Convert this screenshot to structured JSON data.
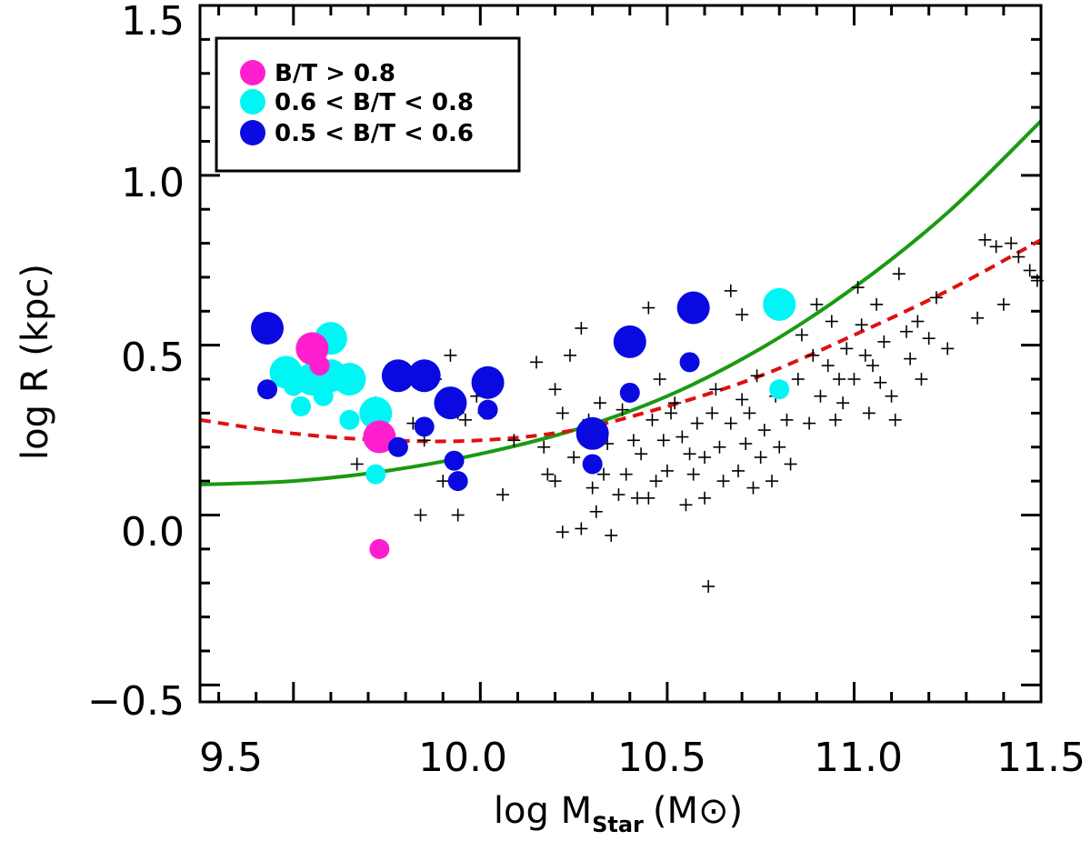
{
  "chart_data": {
    "type": "scatter",
    "xlabel": {
      "main": "log M",
      "sub": "Star",
      "unit": "(M⊙)"
    },
    "ylabel": "log R (kpc)",
    "xlim": [
      9.25,
      11.5
    ],
    "ylim": [
      -0.55,
      1.5
    ],
    "xticks": [
      "9.5",
      "10.0",
      "10.5",
      "11.0",
      "11.5"
    ],
    "yticks": [
      "−0.5",
      "0.0",
      "0.5",
      "1.0",
      "1.5"
    ],
    "grid": false,
    "legend": {
      "position": "top-left"
    },
    "colors": {
      "magenta": "#ff1fcf",
      "cyan": "#00f5f5",
      "blue": "#0a0ae0",
      "green": "#1a9a12",
      "red": "#e01010"
    },
    "series": [
      {
        "name": "B/T > 0.8",
        "color": "#ff1fcf",
        "points": [
          {
            "x": 9.55,
            "y": 0.49,
            "s": "L"
          },
          {
            "x": 9.57,
            "y": 0.44,
            "s": "S"
          },
          {
            "x": 9.73,
            "y": 0.23,
            "s": "L"
          },
          {
            "x": 9.73,
            "y": -0.1,
            "s": "S"
          }
        ]
      },
      {
        "name": "0.6 < B/T < 0.8",
        "color": "#00f5f5",
        "points": [
          {
            "x": 9.48,
            "y": 0.42,
            "s": "L"
          },
          {
            "x": 9.5,
            "y": 0.38,
            "s": "S"
          },
          {
            "x": 9.52,
            "y": 0.32,
            "s": "S"
          },
          {
            "x": 9.55,
            "y": 0.4,
            "s": "L"
          },
          {
            "x": 9.58,
            "y": 0.35,
            "s": "S"
          },
          {
            "x": 9.6,
            "y": 0.52,
            "s": "L"
          },
          {
            "x": 9.6,
            "y": 0.41,
            "s": "L"
          },
          {
            "x": 9.65,
            "y": 0.4,
            "s": "L"
          },
          {
            "x": 9.65,
            "y": 0.28,
            "s": "S"
          },
          {
            "x": 9.72,
            "y": 0.3,
            "s": "L"
          },
          {
            "x": 9.72,
            "y": 0.12,
            "s": "S"
          },
          {
            "x": 10.8,
            "y": 0.62,
            "s": "L"
          },
          {
            "x": 10.8,
            "y": 0.37,
            "s": "S"
          }
        ]
      },
      {
        "name": "0.5 < B/T < 0.6",
        "color": "#0a0ae0",
        "points": [
          {
            "x": 9.43,
            "y": 0.55,
            "s": "L"
          },
          {
            "x": 9.43,
            "y": 0.37,
            "s": "S"
          },
          {
            "x": 9.78,
            "y": 0.41,
            "s": "L"
          },
          {
            "x": 9.78,
            "y": 0.2,
            "s": "S"
          },
          {
            "x": 9.85,
            "y": 0.41,
            "s": "L"
          },
          {
            "x": 9.85,
            "y": 0.26,
            "s": "S"
          },
          {
            "x": 9.92,
            "y": 0.33,
            "s": "L"
          },
          {
            "x": 9.93,
            "y": 0.16,
            "s": "S"
          },
          {
            "x": 9.94,
            "y": 0.1,
            "s": "S"
          },
          {
            "x": 10.02,
            "y": 0.39,
            "s": "L"
          },
          {
            "x": 10.02,
            "y": 0.31,
            "s": "S"
          },
          {
            "x": 10.3,
            "y": 0.24,
            "s": "L"
          },
          {
            "x": 10.3,
            "y": 0.15,
            "s": "S"
          },
          {
            "x": 10.4,
            "y": 0.51,
            "s": "L"
          },
          {
            "x": 10.4,
            "y": 0.36,
            "s": "S"
          },
          {
            "x": 10.57,
            "y": 0.61,
            "s": "L"
          },
          {
            "x": 10.56,
            "y": 0.45,
            "s": "S"
          }
        ]
      },
      {
        "name": "",
        "marker": "plus",
        "color": "#000000",
        "points": [
          {
            "x": 9.57,
            "y": 0.51
          },
          {
            "x": 9.7,
            "y": 0.3
          },
          {
            "x": 9.72,
            "y": 0.33
          },
          {
            "x": 9.67,
            "y": 0.15
          },
          {
            "x": 9.75,
            "y": 0.23
          },
          {
            "x": 9.78,
            "y": 0.4
          },
          {
            "x": 9.82,
            "y": 0.27
          },
          {
            "x": 9.85,
            "y": 0.22
          },
          {
            "x": 9.88,
            "y": 0.4
          },
          {
            "x": 9.9,
            "y": 0.1
          },
          {
            "x": 9.92,
            "y": 0.47
          },
          {
            "x": 9.94,
            "y": 0.3
          },
          {
            "x": 9.96,
            "y": 0.28
          },
          {
            "x": 9.99,
            "y": 0.35
          },
          {
            "x": 10.01,
            "y": 0.3
          },
          {
            "x": 10.03,
            "y": 0.4
          },
          {
            "x": 10.06,
            "y": 0.06
          },
          {
            "x": 10.09,
            "y": 0.22
          },
          {
            "x": 9.94,
            "y": 0.0
          },
          {
            "x": 9.84,
            "y": 0.0
          },
          {
            "x": 10.15,
            "y": 0.45
          },
          {
            "x": 10.17,
            "y": 0.2
          },
          {
            "x": 10.18,
            "y": 0.12
          },
          {
            "x": 10.2,
            "y": 0.37
          },
          {
            "x": 10.2,
            "y": 0.1
          },
          {
            "x": 10.22,
            "y": 0.3
          },
          {
            "x": 10.22,
            "y": -0.05
          },
          {
            "x": 10.24,
            "y": 0.47
          },
          {
            "x": 10.25,
            "y": 0.17
          },
          {
            "x": 10.27,
            "y": 0.55
          },
          {
            "x": 10.27,
            "y": -0.04
          },
          {
            "x": 10.29,
            "y": 0.28
          },
          {
            "x": 10.3,
            "y": 0.08
          },
          {
            "x": 10.31,
            "y": 0.01
          },
          {
            "x": 10.32,
            "y": 0.33
          },
          {
            "x": 10.33,
            "y": 0.12
          },
          {
            "x": 10.34,
            "y": 0.21
          },
          {
            "x": 10.35,
            "y": -0.06
          },
          {
            "x": 10.37,
            "y": 0.06
          },
          {
            "x": 10.38,
            "y": 0.31
          },
          {
            "x": 10.39,
            "y": 0.12
          },
          {
            "x": 10.41,
            "y": 0.22
          },
          {
            "x": 10.42,
            "y": 0.05
          },
          {
            "x": 10.43,
            "y": 0.18
          },
          {
            "x": 10.45,
            "y": 0.61
          },
          {
            "x": 10.45,
            "y": 0.05
          },
          {
            "x": 10.46,
            "y": 0.28
          },
          {
            "x": 10.47,
            "y": 0.1
          },
          {
            "x": 10.48,
            "y": 0.4
          },
          {
            "x": 10.49,
            "y": 0.22
          },
          {
            "x": 10.5,
            "y": 0.13
          },
          {
            "x": 10.51,
            "y": 0.3
          },
          {
            "x": 10.52,
            "y": 0.33
          },
          {
            "x": 10.54,
            "y": 0.23
          },
          {
            "x": 10.55,
            "y": 0.03
          },
          {
            "x": 10.56,
            "y": 0.18
          },
          {
            "x": 10.57,
            "y": 0.12
          },
          {
            "x": 10.58,
            "y": 0.27
          },
          {
            "x": 10.6,
            "y": 0.17
          },
          {
            "x": 10.6,
            "y": 0.05
          },
          {
            "x": 10.61,
            "y": -0.21
          },
          {
            "x": 10.62,
            "y": 0.3
          },
          {
            "x": 10.63,
            "y": 0.37
          },
          {
            "x": 10.64,
            "y": 0.2
          },
          {
            "x": 10.65,
            "y": 0.1
          },
          {
            "x": 10.67,
            "y": 0.66
          },
          {
            "x": 10.67,
            "y": 0.27
          },
          {
            "x": 10.69,
            "y": 0.13
          },
          {
            "x": 10.7,
            "y": 0.34
          },
          {
            "x": 10.7,
            "y": 0.59
          },
          {
            "x": 10.71,
            "y": 0.21
          },
          {
            "x": 10.72,
            "y": 0.3
          },
          {
            "x": 10.73,
            "y": 0.08
          },
          {
            "x": 10.74,
            "y": 0.41
          },
          {
            "x": 10.75,
            "y": 0.17
          },
          {
            "x": 10.76,
            "y": 0.25
          },
          {
            "x": 10.78,
            "y": 0.1
          },
          {
            "x": 10.79,
            "y": 0.35
          },
          {
            "x": 10.8,
            "y": 0.2
          },
          {
            "x": 10.82,
            "y": 0.28
          },
          {
            "x": 10.83,
            "y": 0.15
          },
          {
            "x": 10.85,
            "y": 0.4
          },
          {
            "x": 10.86,
            "y": 0.53
          },
          {
            "x": 10.88,
            "y": 0.27
          },
          {
            "x": 10.89,
            "y": 0.47
          },
          {
            "x": 10.9,
            "y": 0.62
          },
          {
            "x": 10.91,
            "y": 0.35
          },
          {
            "x": 10.93,
            "y": 0.44
          },
          {
            "x": 10.94,
            "y": 0.57
          },
          {
            "x": 10.95,
            "y": 0.28
          },
          {
            "x": 10.96,
            "y": 0.4
          },
          {
            "x": 10.98,
            "y": 0.49
          },
          {
            "x": 11.0,
            "y": 0.4
          },
          {
            "x": 11.01,
            "y": 0.67
          },
          {
            "x": 11.02,
            "y": 0.56
          },
          {
            "x": 11.03,
            "y": 0.47
          },
          {
            "x": 11.04,
            "y": 0.3
          },
          {
            "x": 11.05,
            "y": 0.44
          },
          {
            "x": 11.07,
            "y": 0.39
          },
          {
            "x": 11.08,
            "y": 0.51
          },
          {
            "x": 11.1,
            "y": 0.35
          },
          {
            "x": 11.11,
            "y": 0.28
          },
          {
            "x": 11.12,
            "y": 0.71
          },
          {
            "x": 11.14,
            "y": 0.54
          },
          {
            "x": 11.15,
            "y": 0.46
          },
          {
            "x": 11.17,
            "y": 0.57
          },
          {
            "x": 11.18,
            "y": 0.4
          },
          {
            "x": 11.2,
            "y": 0.52
          },
          {
            "x": 11.22,
            "y": 0.64
          },
          {
            "x": 11.25,
            "y": 0.49
          },
          {
            "x": 11.33,
            "y": 0.58
          },
          {
            "x": 11.35,
            "y": 0.81
          },
          {
            "x": 11.38,
            "y": 0.79
          },
          {
            "x": 11.4,
            "y": 0.62
          },
          {
            "x": 11.42,
            "y": 0.8
          },
          {
            "x": 11.44,
            "y": 0.76
          },
          {
            "x": 11.47,
            "y": 0.72
          },
          {
            "x": 11.49,
            "y": 0.69
          },
          {
            "x": 10.97,
            "y": 0.33
          },
          {
            "x": 11.06,
            "y": 0.62
          }
        ]
      }
    ],
    "curves": [
      {
        "name": "",
        "color": "#1a9a12",
        "style": "solid",
        "points": [
          [
            9.25,
            0.09
          ],
          [
            9.5,
            0.1
          ],
          [
            9.75,
            0.13
          ],
          [
            10.0,
            0.18
          ],
          [
            10.25,
            0.25
          ],
          [
            10.5,
            0.35
          ],
          [
            10.75,
            0.49
          ],
          [
            11.0,
            0.67
          ],
          [
            11.25,
            0.89
          ],
          [
            11.5,
            1.16
          ]
        ]
      },
      {
        "name": "",
        "color": "#e01010",
        "style": "dashed",
        "points": [
          [
            9.25,
            0.28
          ],
          [
            9.5,
            0.24
          ],
          [
            9.75,
            0.22
          ],
          [
            10.0,
            0.22
          ],
          [
            10.25,
            0.25
          ],
          [
            10.5,
            0.32
          ],
          [
            10.75,
            0.41
          ],
          [
            11.0,
            0.53
          ],
          [
            11.25,
            0.66
          ],
          [
            11.5,
            0.81
          ]
        ]
      }
    ]
  }
}
